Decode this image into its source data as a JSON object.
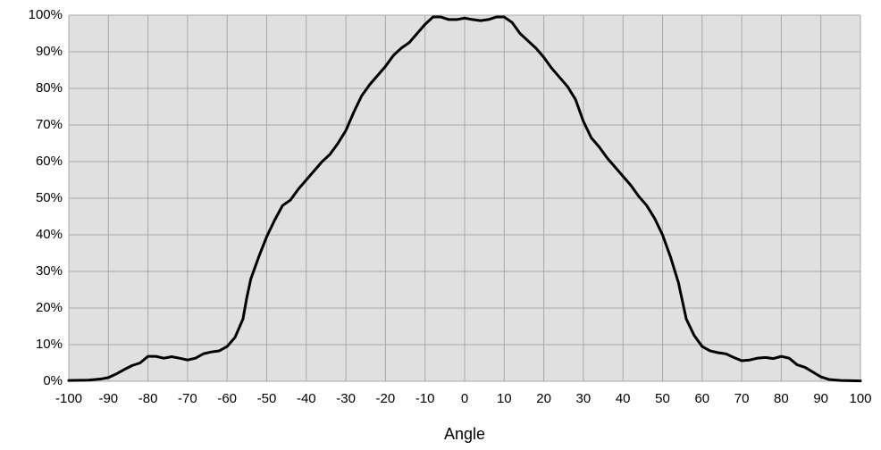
{
  "chart_data": {
    "type": "line",
    "xlabel": "Angle",
    "color": "#000000",
    "grid": true,
    "x": [
      -100,
      -95,
      -92,
      -90,
      -88,
      -86,
      -84,
      -82,
      -80,
      -78,
      -76,
      -74,
      -72,
      -70,
      -68,
      -66,
      -64,
      -62,
      -60,
      -58,
      -56,
      -55,
      -54,
      -52,
      -50,
      -48,
      -46,
      -44,
      -42,
      -40,
      -38,
      -36,
      -34,
      -32,
      -30,
      -28,
      -26,
      -24,
      -22,
      -20,
      -18,
      -16,
      -14,
      -12,
      -10,
      -8,
      -6,
      -4,
      -2,
      0,
      2,
      4,
      6,
      8,
      10,
      12,
      14,
      16,
      18,
      20,
      22,
      24,
      26,
      28,
      30,
      32,
      34,
      36,
      38,
      40,
      42,
      44,
      46,
      48,
      50,
      52,
      54,
      56,
      58,
      60,
      62,
      64,
      66,
      68,
      70,
      72,
      74,
      76,
      78,
      80,
      82,
      84,
      86,
      88,
      90,
      92,
      95,
      100
    ],
    "values": [
      0.2,
      0.3,
      0.6,
      1,
      2,
      3.2,
      4.3,
      5,
      6.8,
      6.8,
      6.3,
      6.7,
      6.3,
      5.8,
      6.3,
      7.5,
      8,
      8.3,
      9.5,
      12,
      17,
      23,
      28,
      34,
      39.5,
      44,
      48,
      49.5,
      52.5,
      55,
      57.5,
      60,
      62,
      65,
      68.5,
      73.5,
      78,
      81,
      83.5,
      86,
      89,
      91,
      92.5,
      95,
      97.5,
      99.5,
      99.5,
      98.8,
      98.8,
      99.2,
      98.8,
      98.5,
      98.8,
      99.5,
      99.5,
      98,
      95,
      93,
      91,
      88.5,
      85.5,
      83,
      80.5,
      77,
      71,
      66.5,
      64,
      61,
      58.5,
      56,
      53.5,
      50.5,
      48,
      44.5,
      40,
      34,
      27,
      17,
      12.5,
      9.5,
      8.3,
      7.8,
      7.5,
      6.5,
      5.6,
      5.8,
      6.3,
      6.5,
      6.2,
      6.8,
      6.3,
      4.5,
      3.8,
      2.5,
      1.2,
      0.5,
      0.2,
      0.1
    ],
    "xlim": [
      -100,
      100
    ],
    "xticks": [
      -100,
      -90,
      -80,
      -70,
      -60,
      -50,
      -40,
      -30,
      -20,
      -10,
      0,
      10,
      20,
      30,
      40,
      50,
      60,
      70,
      80,
      90,
      100
    ],
    "ylim": [
      0,
      100
    ],
    "yticks": [
      {
        "value": 0,
        "label": "0%"
      },
      {
        "value": 10,
        "label": "10%"
      },
      {
        "value": 20,
        "label": "20%"
      },
      {
        "value": 30,
        "label": "30%"
      },
      {
        "value": 40,
        "label": "40%"
      },
      {
        "value": 50,
        "label": "50%"
      },
      {
        "value": 60,
        "label": "60%"
      },
      {
        "value": 70,
        "label": "70%"
      },
      {
        "value": 80,
        "label": "80%"
      },
      {
        "value": 90,
        "label": "90%"
      },
      {
        "value": 100,
        "label": "100%"
      }
    ]
  }
}
